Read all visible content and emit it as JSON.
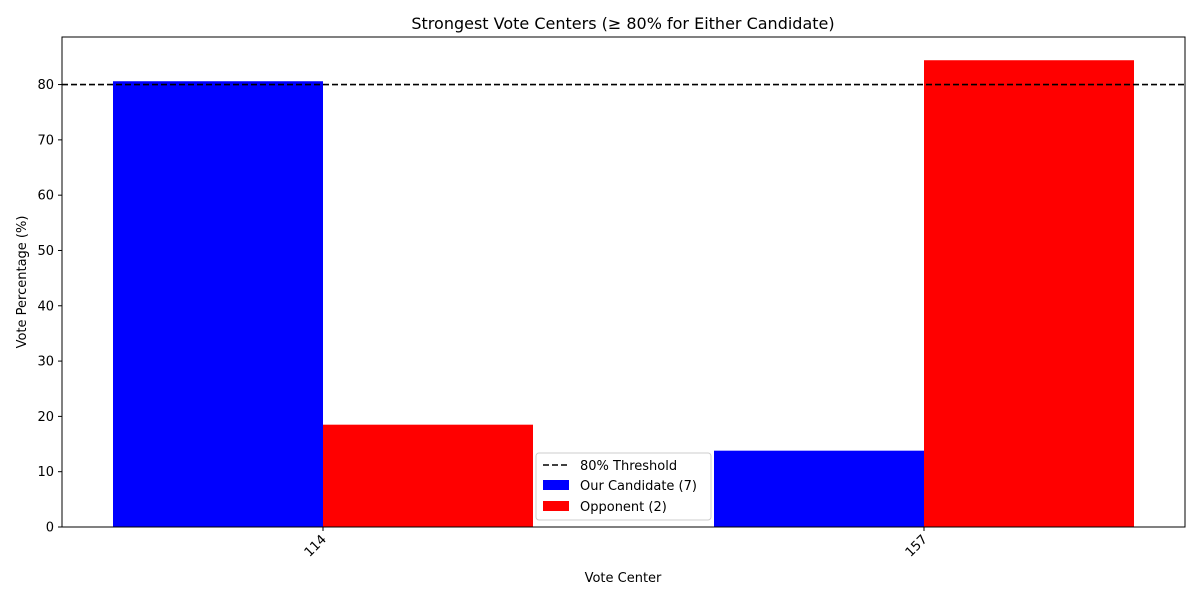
{
  "chart_data": {
    "type": "bar",
    "title": "Strongest Vote Centers (≥ 80% for Either Candidate)",
    "xlabel": "Vote Center",
    "ylabel": "Vote Percentage (%)",
    "categories": [
      "114",
      "157"
    ],
    "series": [
      {
        "name": "Our Candidate (7)",
        "color": "#0000ff",
        "values": [
          80.6,
          13.8
        ]
      },
      {
        "name": "Opponent (2)",
        "color": "#ff0000",
        "values": [
          18.5,
          84.4
        ]
      }
    ],
    "threshold": {
      "name": "80% Threshold",
      "value": 80,
      "color": "#000000",
      "style": "dashed"
    },
    "ylim": [
      0,
      88.6
    ],
    "yticks": [
      0,
      10,
      20,
      30,
      40,
      50,
      60,
      70,
      80
    ],
    "grid": false,
    "legend_position": "lower center"
  }
}
